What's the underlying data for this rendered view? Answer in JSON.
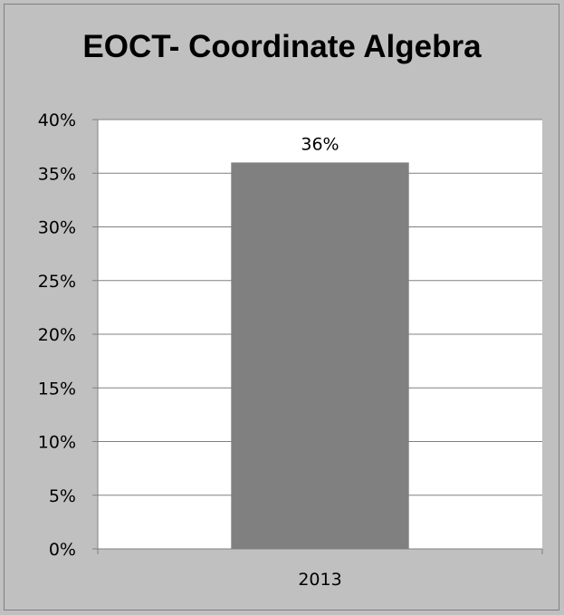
{
  "chart_data": {
    "type": "bar",
    "title": "EOCT- Coordinate Algebra",
    "categories": [
      "2013"
    ],
    "values": [
      36
    ],
    "data_labels": [
      "36%"
    ],
    "ylim": [
      0,
      40
    ],
    "y_ticks": [
      "0%",
      "5%",
      "10%",
      "15%",
      "20%",
      "25%",
      "30%",
      "35%",
      "40%"
    ],
    "grid": true,
    "legend": "none",
    "colors": {
      "bar": "#808080",
      "plot_background": "#ffffff",
      "chart_background": "#c0c0c0",
      "gridline": "#808080"
    }
  }
}
